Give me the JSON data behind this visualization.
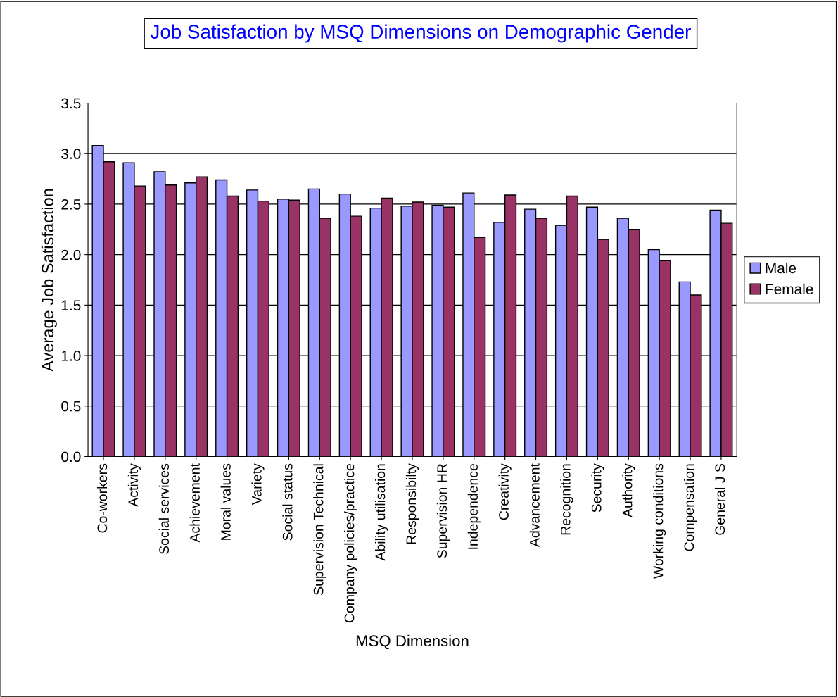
{
  "chart_data": {
    "type": "bar",
    "title": "Job Satisfaction by MSQ Dimensions on Demographic Gender",
    "xlabel": "MSQ Dimension",
    "ylabel": "Average Job Satisfaction",
    "categories": [
      "Co-workers",
      "Activity",
      "Social services",
      "Achievement",
      "Moral values",
      "Variety",
      "Social status",
      "Supervision Technical",
      "Company policies/practice",
      "Ability utilisation",
      "Responsibilty",
      "Supervision HR",
      "Independence",
      "Creativity",
      "Advancement",
      "Recognition",
      "Security",
      "Authority",
      "Working conditions",
      "Compensation",
      "General J S"
    ],
    "series": [
      {
        "name": "Male",
        "color": "#9999ff",
        "values": [
          3.08,
          2.91,
          2.82,
          2.71,
          2.74,
          2.64,
          2.55,
          2.65,
          2.6,
          2.46,
          2.48,
          2.49,
          2.61,
          2.32,
          2.45,
          2.29,
          2.47,
          2.36,
          2.05,
          1.73,
          2.44
        ]
      },
      {
        "name": "Female",
        "color": "#993366",
        "values": [
          2.92,
          2.68,
          2.69,
          2.77,
          2.58,
          2.53,
          2.54,
          2.36,
          2.38,
          2.56,
          2.52,
          2.47,
          2.17,
          2.59,
          2.36,
          2.58,
          2.15,
          2.25,
          1.94,
          1.6,
          2.31
        ]
      }
    ],
    "ylim": [
      0,
      3.5
    ],
    "yticks": [
      {
        "value": 0,
        "label": "0.0"
      },
      {
        "value": 0.5,
        "label": "0.5"
      },
      {
        "value": 1,
        "label": "1.0"
      },
      {
        "value": 1.5,
        "label": "1.5"
      },
      {
        "value": 2,
        "label": "2.0"
      },
      {
        "value": 2.5,
        "label": "2.5"
      },
      {
        "value": 3,
        "label": "3.0"
      },
      {
        "value": 3.5,
        "label": "3.5"
      }
    ],
    "grid": "y",
    "legend": "right"
  }
}
